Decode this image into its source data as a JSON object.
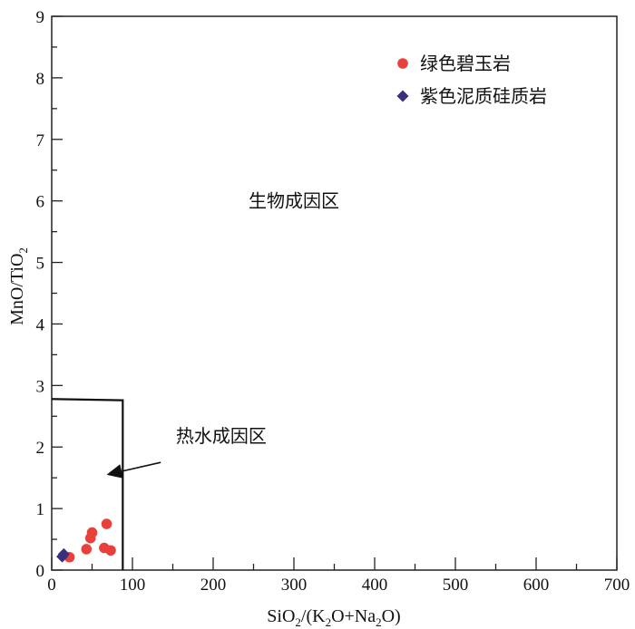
{
  "chart_data": {
    "type": "scatter",
    "xlabel": "SiO",
    "xlabel_sub": "2",
    "xlabel_rest": "/(K",
    "xlabel_sub2": "2",
    "xlabel_rest2": "O+Na",
    "xlabel_sub3": "2",
    "xlabel_rest3": "O)",
    "ylabel": "MnO/TiO",
    "ylabel_sub": "2",
    "xlim": [
      0,
      700
    ],
    "ylim": [
      0,
      9
    ],
    "x_ticks": [
      0,
      100,
      200,
      300,
      400,
      500,
      600,
      700
    ],
    "y_ticks": [
      0,
      1,
      2,
      3,
      4,
      5,
      6,
      7,
      8,
      9
    ],
    "grid": false,
    "legend_position": "top-right",
    "boundary": {
      "points": [
        [
          0,
          2.78
        ],
        [
          88,
          2.76
        ],
        [
          88,
          0
        ]
      ]
    },
    "zones": [
      {
        "label": "生物成因区",
        "x": 300,
        "y": 5.9
      },
      {
        "label": "热水成因区",
        "x": 210,
        "y": 2.08
      }
    ],
    "arrow": {
      "from": [
        135,
        1.75
      ],
      "to": [
        68,
        1.55
      ]
    },
    "series": [
      {
        "name": "绿色碧玉岩",
        "marker": "circle",
        "color": "#e8413b",
        "points": [
          [
            22,
            0.21
          ],
          [
            43,
            0.34
          ],
          [
            48,
            0.52
          ],
          [
            50,
            0.61
          ],
          [
            65,
            0.36
          ],
          [
            68,
            0.75
          ],
          [
            73,
            0.32
          ]
        ]
      },
      {
        "name": "紫色泥质硅质岩",
        "marker": "diamond",
        "color": "#3b2e7e",
        "points": [
          [
            13,
            0.22
          ],
          [
            15,
            0.26
          ]
        ]
      }
    ]
  }
}
